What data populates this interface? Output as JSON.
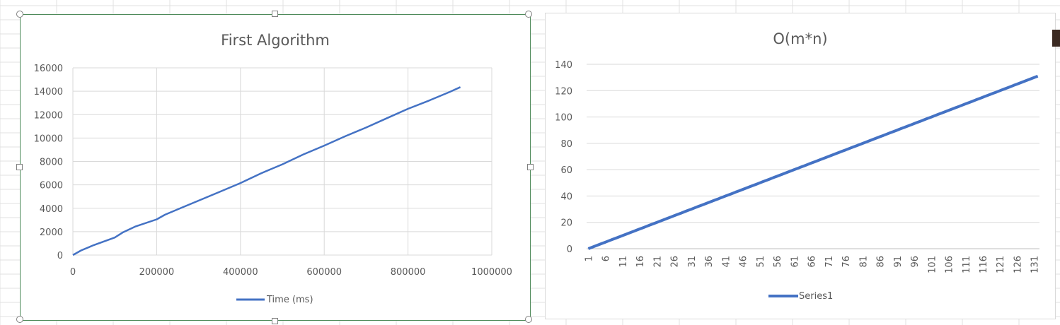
{
  "charts": [
    {
      "type": "line",
      "title": "First Algorithm",
      "xlim": [
        0,
        1000000
      ],
      "ylim": [
        0,
        16000
      ],
      "x_ticks": [
        "0",
        "200000",
        "400000",
        "600000",
        "800000",
        "1000000"
      ],
      "y_ticks": [
        "0",
        "2000",
        "4000",
        "6000",
        "8000",
        "10000",
        "12000",
        "14000",
        "16000"
      ],
      "grid": true,
      "legend_position": "bottom",
      "series": [
        {
          "name": "Time (ms)",
          "color": "#4472c4",
          "x": [
            0,
            20000,
            50000,
            100000,
            120000,
            150000,
            200000,
            220000,
            260000,
            300000,
            350000,
            400000,
            450000,
            500000,
            550000,
            600000,
            650000,
            700000,
            750000,
            800000,
            850000,
            900000,
            925000
          ],
          "y": [
            0,
            400,
            850,
            1500,
            1950,
            2450,
            3050,
            3450,
            4050,
            4650,
            5400,
            6150,
            7000,
            7750,
            8600,
            9350,
            10150,
            10900,
            11700,
            12500,
            13200,
            13950,
            14350
          ]
        }
      ]
    },
    {
      "type": "line",
      "title": "O(m*n)",
      "categories_start": 1,
      "categories_end": 132,
      "x_ticks": [
        "1",
        "6",
        "11",
        "16",
        "21",
        "26",
        "31",
        "36",
        "41",
        "46",
        "51",
        "56",
        "61",
        "66",
        "71",
        "76",
        "81",
        "86",
        "91",
        "96",
        "101",
        "106",
        "111",
        "116",
        "121",
        "126",
        "131"
      ],
      "ylim": [
        0,
        140
      ],
      "y_ticks": [
        "0",
        "20",
        "40",
        "60",
        "80",
        "100",
        "120",
        "140"
      ],
      "grid": true,
      "legend_position": "bottom",
      "series": [
        {
          "name": "Series1",
          "color": "#4472c4",
          "start": 0,
          "step": 1
        }
      ]
    }
  ],
  "chart_data": [
    {
      "type": "line",
      "title": "First Algorithm",
      "xlabel": "",
      "ylabel": "",
      "xlim": [
        0,
        1000000
      ],
      "ylim": [
        0,
        16000
      ],
      "series": [
        {
          "name": "Time (ms)",
          "x": [
            0,
            20000,
            50000,
            100000,
            120000,
            150000,
            200000,
            220000,
            260000,
            300000,
            350000,
            400000,
            450000,
            500000,
            550000,
            600000,
            650000,
            700000,
            750000,
            800000,
            850000,
            900000,
            925000
          ],
          "y": [
            0,
            400,
            850,
            1500,
            1950,
            2450,
            3050,
            3450,
            4050,
            4650,
            5400,
            6150,
            7000,
            7750,
            8600,
            9350,
            10150,
            10900,
            11700,
            12500,
            13200,
            13950,
            14350
          ]
        }
      ]
    },
    {
      "type": "line",
      "title": "O(m*n)",
      "xlabel": "",
      "ylabel": "",
      "categories": "1..132",
      "ylim": [
        0,
        140
      ],
      "series": [
        {
          "name": "Series1",
          "values": "0,1,2,...,131 (value = category - 1)"
        }
      ]
    }
  ]
}
